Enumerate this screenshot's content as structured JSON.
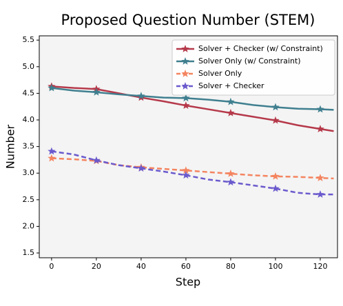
{
  "chart_data": {
    "type": "line",
    "title": "Proposed Question Number (STEM)",
    "xlabel": "Step",
    "ylabel": "Number",
    "x": [
      0,
      10,
      20,
      30,
      40,
      50,
      60,
      70,
      80,
      90,
      100,
      110,
      120,
      126
    ],
    "series": [
      {
        "name": "Solver + Checker (w/ Constraint)",
        "color": "#b5394a",
        "dashed": false,
        "values": [
          4.63,
          4.6,
          4.58,
          4.5,
          4.42,
          4.35,
          4.27,
          4.2,
          4.13,
          4.06,
          3.99,
          3.9,
          3.83,
          3.79
        ]
      },
      {
        "name": "Solver Only (w/ Constraint)",
        "color": "#3f7f8f",
        "dashed": false,
        "values": [
          4.6,
          4.55,
          4.52,
          4.48,
          4.45,
          4.42,
          4.41,
          4.38,
          4.34,
          4.28,
          4.24,
          4.21,
          4.2,
          4.19
        ]
      },
      {
        "name": "Solver Only",
        "color": "#f4845f",
        "dashed": true,
        "values": [
          3.28,
          3.26,
          3.23,
          3.15,
          3.11,
          3.08,
          3.05,
          3.02,
          2.99,
          2.96,
          2.94,
          2.93,
          2.91,
          2.9
        ]
      },
      {
        "name": "Solver + Checker",
        "color": "#6a5acd",
        "dashed": true,
        "values": [
          3.41,
          3.35,
          3.24,
          3.15,
          3.09,
          3.03,
          2.96,
          2.88,
          2.83,
          2.77,
          2.71,
          2.63,
          2.6,
          2.6
        ]
      }
    ],
    "xlim": [
      -5.5,
      127.7
    ],
    "xticks": [
      0,
      20,
      40,
      60,
      80,
      100,
      120
    ],
    "ylim": [
      1.41,
      5.58
    ],
    "yticks": [
      1.5,
      {
        "value": 2,
        "label": "2.0"
      },
      2.5,
      {
        "value": 3,
        "label": "3.0"
      },
      3.5,
      {
        "value": 4,
        "label": "4.0"
      },
      4.5,
      {
        "value": 5,
        "label": "5.0"
      },
      5.5
    ],
    "legend": "upper right"
  }
}
